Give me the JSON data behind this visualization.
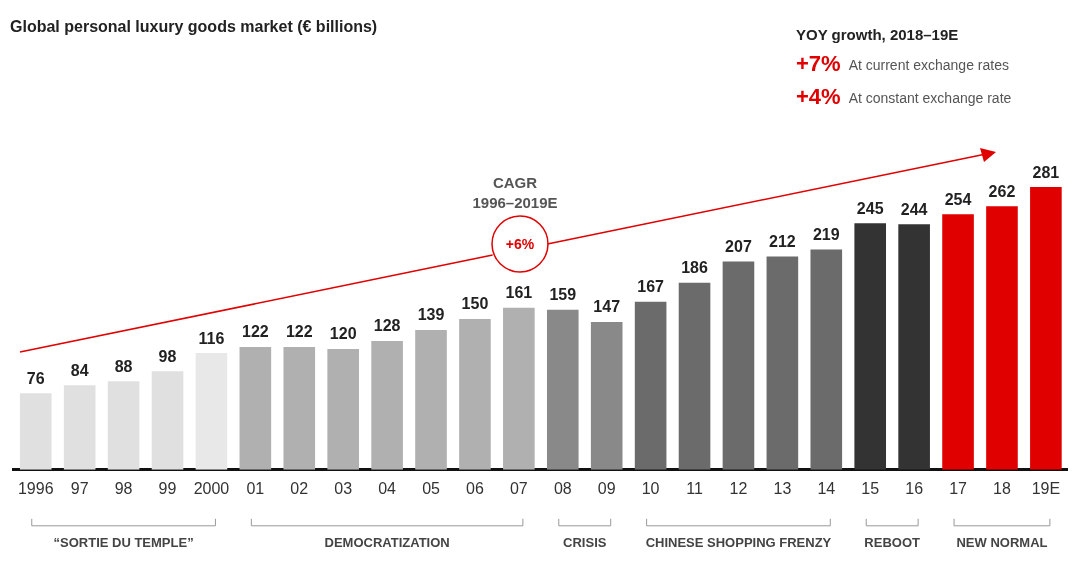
{
  "chart_data": {
    "type": "bar",
    "title": "Global personal luxury goods market (€ billions)",
    "categories": [
      "1996",
      "97",
      "98",
      "99",
      "2000",
      "01",
      "02",
      "03",
      "04",
      "05",
      "06",
      "07",
      "08",
      "09",
      "10",
      "11",
      "12",
      "13",
      "14",
      "15",
      "16",
      "17",
      "18",
      "19E"
    ],
    "values": [
      76,
      84,
      88,
      98,
      116,
      122,
      122,
      120,
      128,
      139,
      150,
      161,
      159,
      147,
      167,
      186,
      207,
      212,
      219,
      245,
      244,
      254,
      262,
      281
    ],
    "colors": [
      "#e0e0e0",
      "#e0e0e0",
      "#e0e0e0",
      "#e0e0e0",
      "#e8e8e8",
      "#b0b0b0",
      "#b0b0b0",
      "#b0b0b0",
      "#b0b0b0",
      "#b0b0b0",
      "#b0b0b0",
      "#b0b0b0",
      "#898989",
      "#898989",
      "#6b6b6b",
      "#6b6b6b",
      "#6b6b6b",
      "#6b6b6b",
      "#6b6b6b",
      "#333333",
      "#333333",
      "#e00000",
      "#e00000",
      "#e00000"
    ],
    "data_labels": true,
    "grid": false,
    "legend": false,
    "annotations": [
      "YOY growth, 2018–19E",
      "+7%",
      "At current exchange rates",
      "+4%",
      "At constant exchange rate",
      "CAGR",
      "1996–2019E",
      "+6%",
      "“SORTIE DU TEMPLE”",
      "DEMOCRATIZATION",
      "CRISIS",
      "CHINESE SHOPPING FRENZY",
      "REBOOT",
      "NEW NORMAL"
    ]
  }
}
